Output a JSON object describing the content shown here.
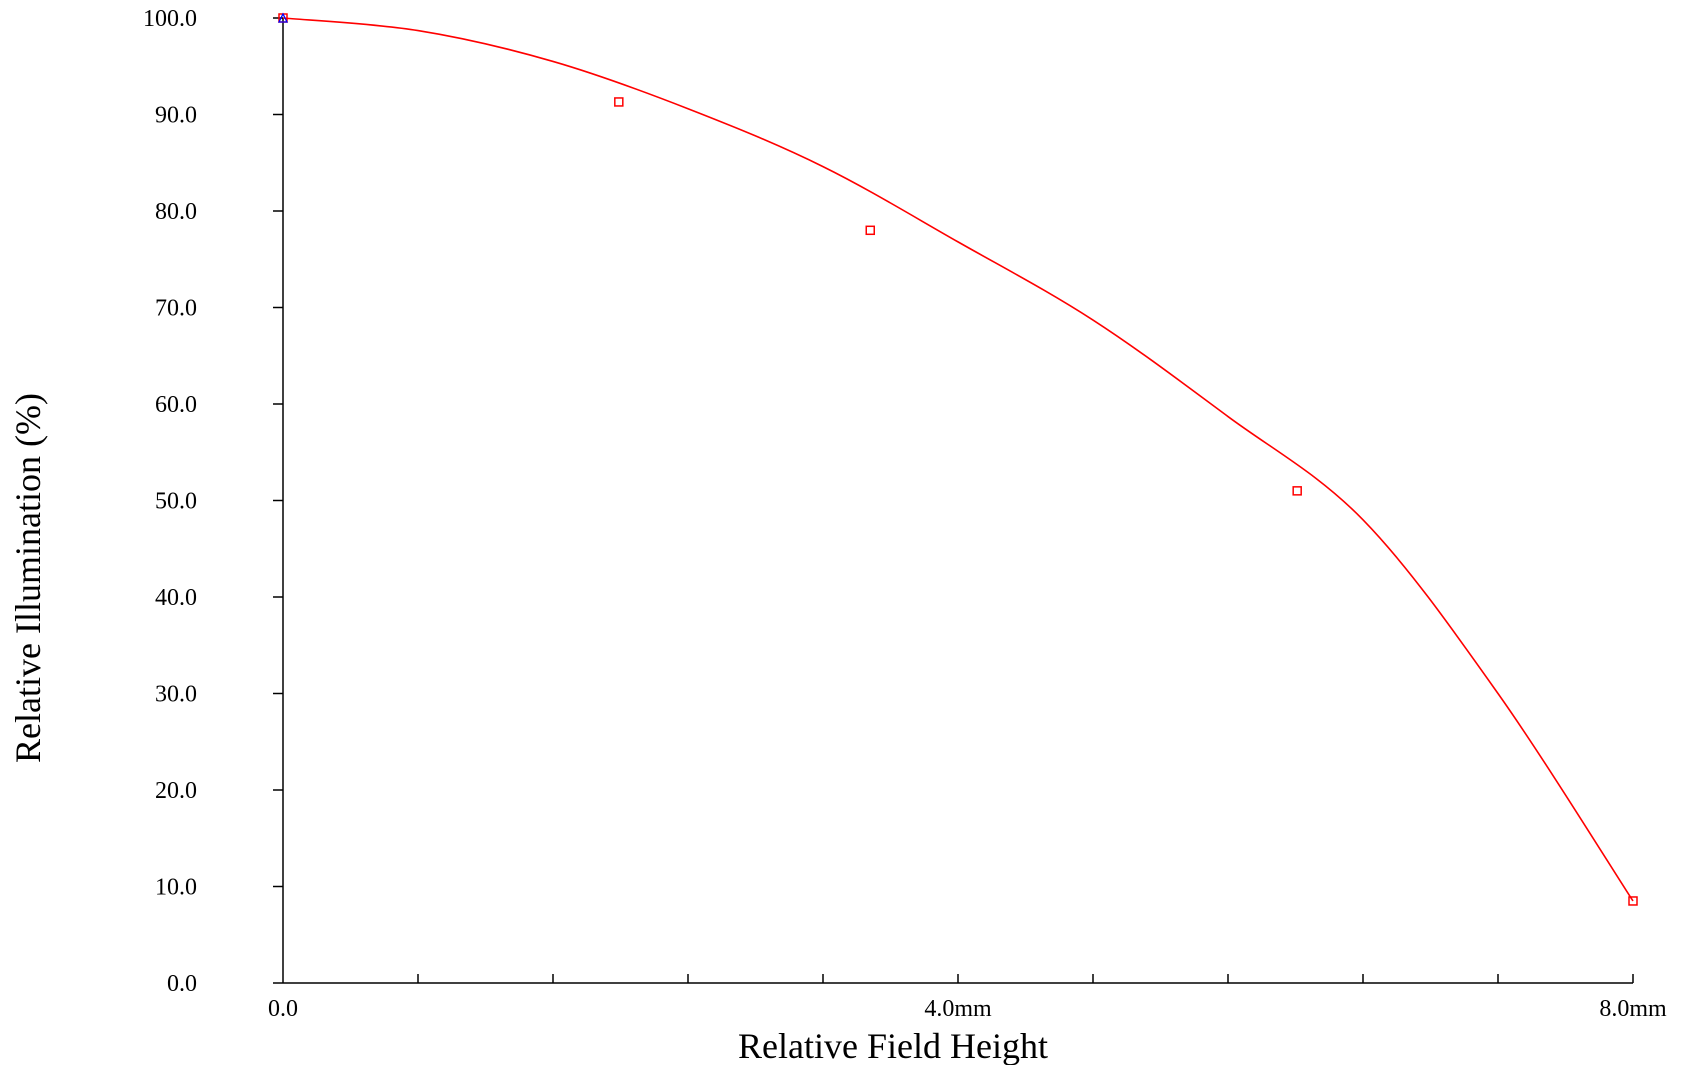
{
  "chart_data": {
    "type": "line",
    "title": "",
    "xlabel": "Relative Field Height",
    "ylabel": "Relative Illumination (%)",
    "xlim": [
      0,
      8.0
    ],
    "ylim": [
      0,
      100
    ],
    "grid": false,
    "x_tick_labels": [
      {
        "value": 0,
        "label": "0.0"
      },
      {
        "value": 4.0,
        "label": "4.0mm"
      },
      {
        "value": 8.0,
        "label": "8.0mm"
      }
    ],
    "x_minor_ticks": [
      0.8,
      1.6,
      2.4,
      3.2,
      4.0,
      4.8,
      5.6,
      6.4,
      7.2,
      8.0
    ],
    "y_tick_labels": [
      {
        "value": 0,
        "label": "0.0"
      },
      {
        "value": 10,
        "label": "10.0"
      },
      {
        "value": 20,
        "label": "20.0"
      },
      {
        "value": 30,
        "label": "30.0"
      },
      {
        "value": 40,
        "label": "40.0"
      },
      {
        "value": 50,
        "label": "50.0"
      },
      {
        "value": 60,
        "label": "60.0"
      },
      {
        "value": 70,
        "label": "70.0"
      },
      {
        "value": 80,
        "label": "80.0"
      },
      {
        "value": 90,
        "label": "90.0"
      },
      {
        "value": 100,
        "label": "100.0"
      }
    ],
    "series": [
      {
        "color": "#ff0000",
        "marker": "square",
        "x": [
          0.0,
          0.8,
          1.6,
          2.4,
          3.2,
          4.0,
          4.8,
          5.6,
          6.4,
          7.2,
          8.0
        ],
        "values": [
          100.0,
          98.7,
          95.5,
          90.6,
          84.6,
          76.8,
          68.7,
          58.7,
          48.0,
          30.0,
          8.5
        ]
      }
    ],
    "marker_points": [
      {
        "x": 0.0,
        "y": 100.0
      },
      {
        "x": 1.99,
        "y": 91.3
      },
      {
        "x": 3.48,
        "y": 78.0
      },
      {
        "x": 6.01,
        "y": 51.0
      },
      {
        "x": 8.0,
        "y": 8.5
      }
    ],
    "reference_marker": {
      "x": 0.0,
      "y": 100.0,
      "color": "#0000ff",
      "marker": "triangle"
    }
  }
}
